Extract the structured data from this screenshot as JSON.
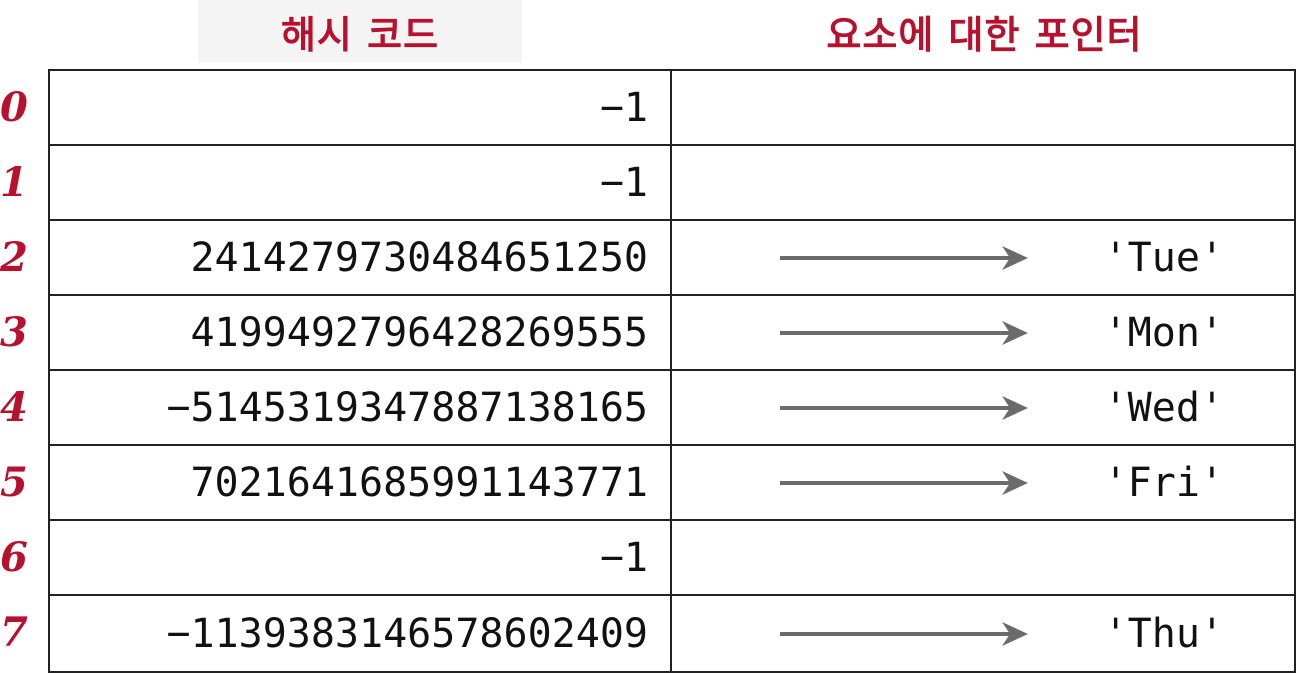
{
  "headers": {
    "hash_code": "해시 코드",
    "element_pointer": "요소에 대한 포인터"
  },
  "colors": {
    "accent": "#b8112e",
    "arrow": "#6b6b6b",
    "border": "#222222"
  },
  "rows": [
    {
      "index": "0",
      "hash": "−1",
      "element": ""
    },
    {
      "index": "1",
      "hash": "−1",
      "element": ""
    },
    {
      "index": "2",
      "hash": "2414279730484651250",
      "element": "'Tue'"
    },
    {
      "index": "3",
      "hash": "4199492796428269555",
      "element": "'Mon'"
    },
    {
      "index": "4",
      "hash": "−5145319347887138165",
      "element": "'Wed'"
    },
    {
      "index": "5",
      "hash": "7021641685991143771",
      "element": "'Fri'"
    },
    {
      "index": "6",
      "hash": "−1",
      "element": ""
    },
    {
      "index": "7",
      "hash": "−1139383146578602409",
      "element": "'Thu'"
    }
  ]
}
